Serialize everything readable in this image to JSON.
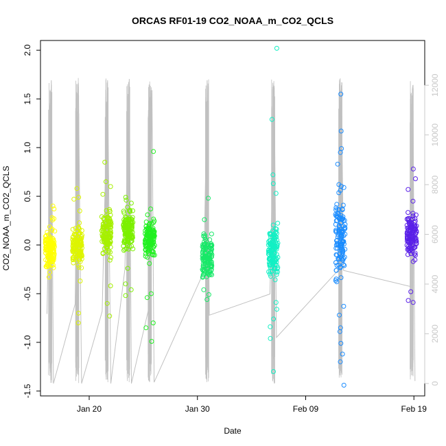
{
  "chart_data": {
    "type": "scatter",
    "title": "ORCAS RF01-19 CO2_NOAA_m_CO2_QCLS",
    "xlabel": "Date",
    "ylabel": "CO2_NOAA_m_CO2_QCLS",
    "x_axis": {
      "type": "date",
      "range": [
        "2016-01-15T12:00",
        "2016-02-20T00:00"
      ],
      "ticks": [
        {
          "value": "2016-01-20",
          "label": "Jan 20"
        },
        {
          "value": "2016-01-30",
          "label": "Jan 30"
        },
        {
          "value": "2016-02-09",
          "label": "Feb 09"
        },
        {
          "value": "2016-02-19",
          "label": "Feb 19"
        }
      ]
    },
    "y_axis": {
      "range": [
        -1.55,
        2.1
      ],
      "ticks": [
        -1.5,
        -1.0,
        -0.5,
        0.0,
        0.5,
        1.0,
        1.5,
        2.0
      ],
      "tick_labels": [
        "-1.5",
        "-1.0",
        "-0.5",
        "0.0",
        "0.5",
        "1.0",
        "1.5",
        "2.0"
      ]
    },
    "y2_axis": {
      "color": "#c8c8c8",
      "range": [
        -500,
        13800
      ],
      "ticks": [
        0,
        2000,
        4000,
        6000,
        8000,
        10000,
        12000
      ],
      "tick_labels": [
        "0",
        "2000",
        "4000",
        "6000",
        "8000",
        "10000",
        "12000"
      ]
    },
    "grid": false,
    "legend": "none",
    "flights": [
      {
        "date": "2016-01-16.4",
        "color": "#ffff00",
        "center": -0.03,
        "spread": 0.13,
        "points": [
          0.4,
          0.37,
          0.28,
          0.27,
          -0.33,
          -0.28,
          -0.22
        ]
      },
      {
        "date": "2016-01-18.9",
        "color": "#ddf500",
        "center": -0.02,
        "spread": 0.14,
        "points": [
          0.58,
          0.49,
          0.47,
          0.35,
          -0.37,
          -0.7,
          -0.8
        ]
      },
      {
        "date": "2016-01-21.6",
        "color": "#a6f000",
        "center": 0.12,
        "spread": 0.16,
        "points": [
          0.85,
          0.65,
          0.6,
          0.52,
          -0.42,
          -0.6,
          -0.73
        ]
      },
      {
        "date": "2016-01-23.6",
        "color": "#7cf000",
        "center": 0.16,
        "spread": 0.13,
        "points": [
          0.49,
          0.46,
          0.43,
          -0.4,
          -0.46,
          -0.52,
          -0.24
        ]
      },
      {
        "date": "2016-01-25.6",
        "color": "#20f020",
        "center": 0.06,
        "spread": 0.14,
        "points": [
          0.96,
          0.37,
          0.31,
          -0.5,
          -0.54,
          -0.8,
          -0.85,
          -0.99
        ]
      },
      {
        "date": "2016-01-30.9",
        "color": "#18e868",
        "center": -0.12,
        "spread": 0.15,
        "points": [
          0.48,
          0.26,
          -0.46,
          -0.51,
          -0.56,
          -0.3
        ]
      },
      {
        "date": "2016-02-06.0",
        "color": "#12f0c4",
        "center": -0.05,
        "spread": 0.16,
        "points": [
          2.02,
          1.29,
          0.72,
          0.63,
          0.53,
          -0.59,
          -0.66,
          -0.76,
          -0.84,
          -0.96,
          -1.3
        ]
      },
      {
        "date": "2016-02-12.2",
        "color": "#1a8cff",
        "center": 0.05,
        "spread": 0.26,
        "points": [
          1.55,
          1.17,
          0.99,
          0.95,
          0.83,
          0.62,
          0.59,
          -0.63,
          -0.72,
          -0.85,
          -0.89,
          -1.01,
          -1.12,
          -1.2,
          -1.44
        ]
      },
      {
        "date": "2016-02-18.8",
        "color": "#5a20e8",
        "center": 0.1,
        "spread": 0.16,
        "points": [
          0.78,
          0.68,
          0.57,
          0.45,
          -0.48,
          -0.57,
          -0.59
        ]
      }
    ],
    "altitude_trace": {
      "color": "#c0c0c0",
      "series": [
        {
          "x": "2016-01-16.1",
          "y": 2800
        },
        {
          "x": "2016-01-16.5",
          "y": 12200
        },
        {
          "x": "2016-01-16.7",
          "y": 0
        },
        {
          "x": "2016-01-18.7",
          "y": 3200
        },
        {
          "x": "2016-01-19.0",
          "y": 12100
        },
        {
          "x": "2016-01-19.3",
          "y": 0
        },
        {
          "x": "2016-01-21.2",
          "y": 2900
        },
        {
          "x": "2016-01-21.7",
          "y": 12200
        },
        {
          "x": "2016-01-22.0",
          "y": 0
        },
        {
          "x": "2016-01-23.3",
          "y": 4600
        },
        {
          "x": "2016-01-23.7",
          "y": 12250
        },
        {
          "x": "2016-01-23.9",
          "y": 0
        },
        {
          "x": "2016-01-25.6",
          "y": 3200
        },
        {
          "x": "2016-01-25.8",
          "y": 11800
        },
        {
          "x": "2016-01-26.0",
          "y": 50
        },
        {
          "x": "2016-01-30.6",
          "y": 4500
        },
        {
          "x": "2016-01-30.9",
          "y": 12200
        },
        {
          "x": "2016-01-31.1",
          "y": 2750
        },
        {
          "x": "2016-02-05.7",
          "y": 3600
        },
        {
          "x": "2016-02-06.1",
          "y": 11900
        },
        {
          "x": "2016-02-06.3",
          "y": 1850
        },
        {
          "x": "2016-02-12.0",
          "y": 4550
        },
        {
          "x": "2016-02-12.3",
          "y": 12000
        },
        {
          "x": "2016-02-12.5",
          "y": 4550
        },
        {
          "x": "2016-02-18.7",
          "y": 3900
        },
        {
          "x": "2016-02-18.9",
          "y": 12000
        },
        {
          "x": "2016-02-19.1",
          "y": 100
        }
      ]
    }
  }
}
